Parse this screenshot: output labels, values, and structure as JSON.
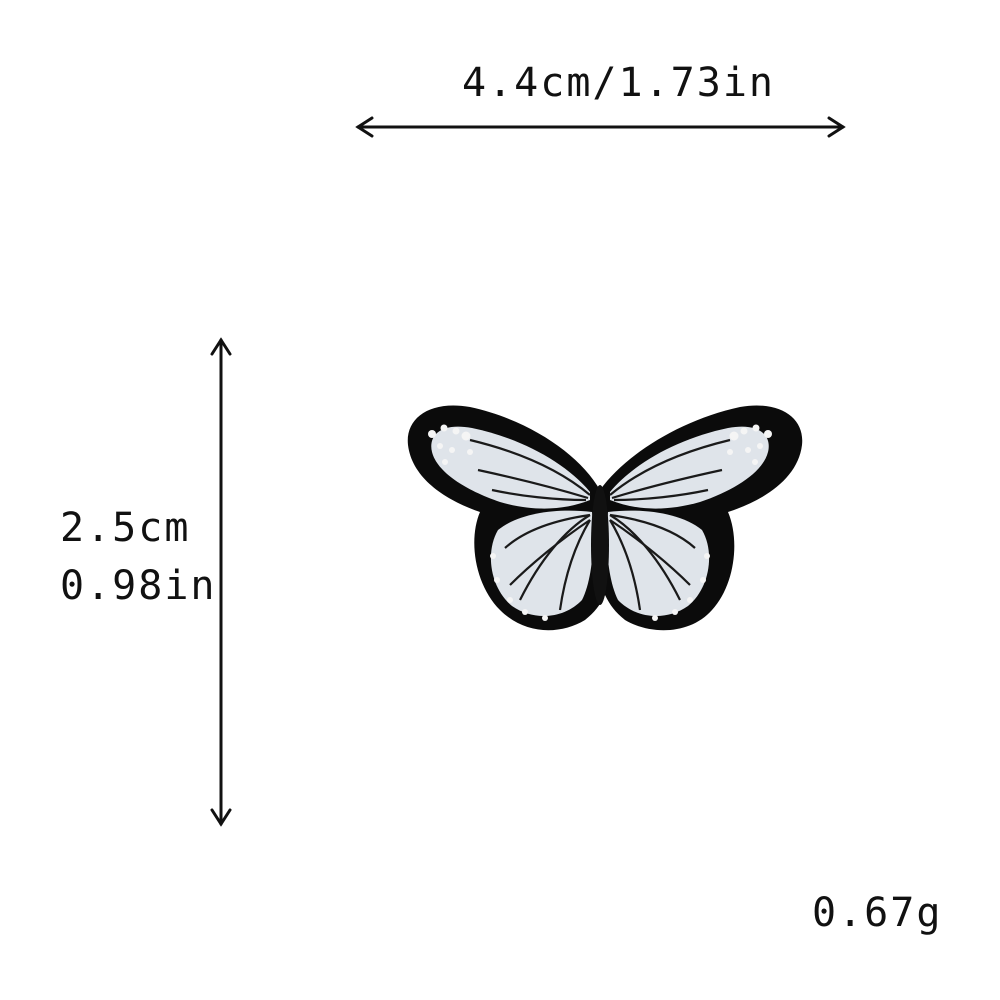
{
  "dimensions": {
    "width_text": "4.4cm/1.73in",
    "height_cm_text": "2.5cm",
    "height_in_text": "0.98in",
    "weight_text": "0.67g"
  },
  "product": {
    "icon": "butterfly-patch-icon",
    "colors": {
      "border": "#0b0b0b",
      "wing_fill": "#dfe4ea",
      "vein": "#1a1a1a",
      "spot": "#f5f5f5"
    }
  },
  "arrow_color": "#111111"
}
